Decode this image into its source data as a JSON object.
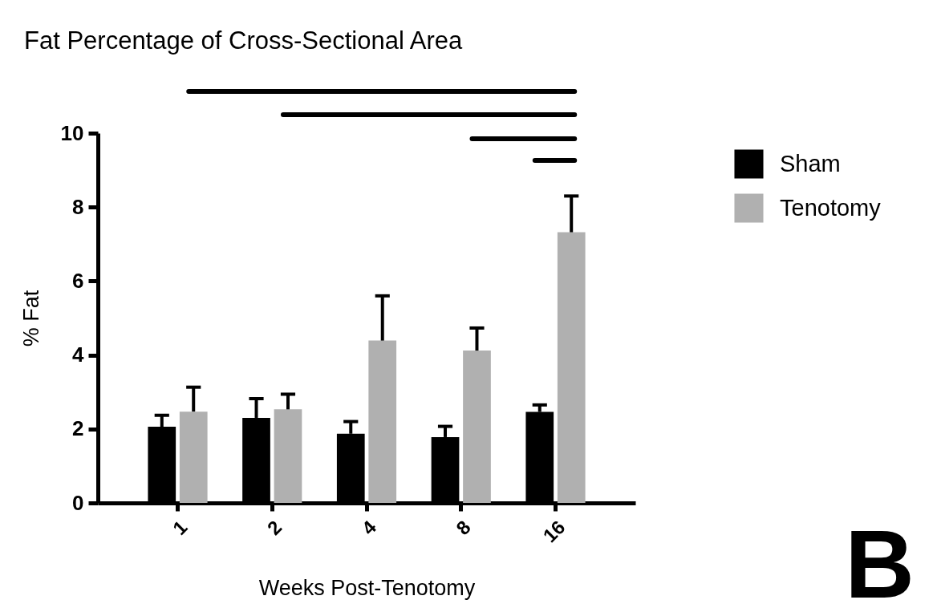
{
  "chart_data": {
    "type": "bar",
    "title": "Fat Percentage of Cross-Sectional Area",
    "xlabel": "Weeks Post-Tenotomy",
    "ylabel": "% Fat",
    "categories": [
      "1",
      "2",
      "4",
      "8",
      "16"
    ],
    "series": [
      {
        "name": "Sham",
        "color": "#000000",
        "values": [
          2.06,
          2.3,
          1.87,
          1.78,
          2.46
        ],
        "errors": [
          [
            2.06,
            2.37
          ],
          [
            2.3,
            2.82
          ],
          [
            1.87,
            2.2
          ],
          [
            1.78,
            2.07
          ],
          [
            2.46,
            2.65
          ]
        ]
      },
      {
        "name": "Tenotomy",
        "color": "#b0b0b0",
        "values": [
          2.47,
          2.53,
          4.39,
          4.12,
          7.32
        ],
        "errors": [
          [
            2.47,
            3.13
          ],
          [
            2.53,
            2.94
          ],
          [
            4.39,
            5.6
          ],
          [
            4.12,
            4.73
          ],
          [
            7.32,
            8.3
          ]
        ]
      }
    ],
    "ylim": [
      0,
      10
    ],
    "yticks": [
      0,
      2,
      4,
      6,
      8,
      10
    ],
    "grid": false,
    "legend": "right",
    "annotations": [
      "B"
    ]
  }
}
